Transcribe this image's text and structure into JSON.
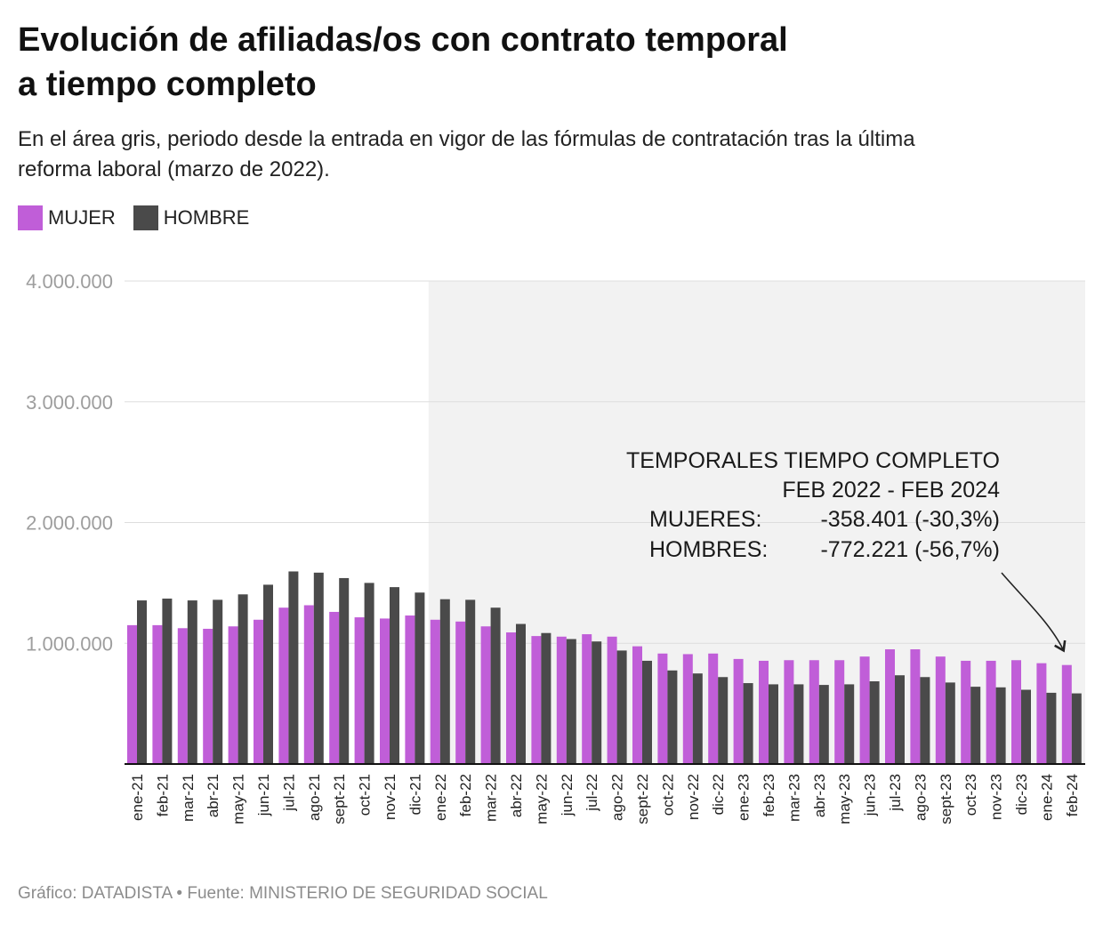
{
  "title_lines": [
    "Evolución de afiliadas/os con contrato temporal",
    "a tiempo completo"
  ],
  "subtitle_lines": [
    "En el área gris, periodo desde la entrada en vigor de las fórmulas de contratación tras la última",
    "reforma laboral (marzo de 2022)."
  ],
  "legend": [
    {
      "label": "MUJER",
      "color": "#c05ed8"
    },
    {
      "label": "HOMBRE",
      "color": "#4a4a4a"
    }
  ],
  "annotation": {
    "heading": "TEMPORALES TIEMPO COMPLETO",
    "period": "FEB 2022 - FEB 2024",
    "rows": [
      {
        "label": "MUJERES:",
        "value": "-358.401 (-30,3%)"
      },
      {
        "label": "HOMBRES:",
        "value": "-772.221 (-56,7%)"
      }
    ]
  },
  "footer": "Gráfico: DATADISTA • Fuente: MINISTERIO DE SEGURIDAD SOCIAL",
  "colors": {
    "mujer": "#c05ed8",
    "hombre": "#4a4a4a",
    "shade": "#f2f2f2",
    "grid": "#dddddd",
    "axis_label": "#9e9e9e"
  },
  "chart_data": {
    "type": "bar",
    "title": "Evolución de afiliadas/os con contrato temporal a tiempo completo",
    "xlabel": "",
    "ylabel": "",
    "ylim": [
      0,
      4000000
    ],
    "yticks": [
      1000000,
      2000000,
      3000000,
      4000000
    ],
    "ytick_labels": [
      "1.000.000",
      "2.000.000",
      "3.000.000",
      "4.000.000"
    ],
    "shaded_from": "ene-22",
    "categories": [
      "ene-21",
      "feb-21",
      "mar-21",
      "abr-21",
      "may-21",
      "jun-21",
      "jul-21",
      "ago-21",
      "sept-21",
      "oct-21",
      "nov-21",
      "dic-21",
      "ene-22",
      "feb-22",
      "mar-22",
      "abr-22",
      "may-22",
      "jun-22",
      "jul-22",
      "ago-22",
      "sept-22",
      "oct-22",
      "nov-22",
      "dic-22",
      "ene-23",
      "feb-23",
      "mar-23",
      "abr-23",
      "may-23",
      "jun-23",
      "jul-23",
      "ago-23",
      "sept-23",
      "oct-23",
      "nov-23",
      "dic-23",
      "ene-24",
      "feb-24"
    ],
    "series": [
      {
        "name": "MUJER",
        "values": [
          1150000,
          1150000,
          1125000,
          1120000,
          1140000,
          1195000,
          1295000,
          1315000,
          1260000,
          1215000,
          1205000,
          1230000,
          1195000,
          1180000,
          1140000,
          1090000,
          1060000,
          1055000,
          1075000,
          1055000,
          975000,
          915000,
          910000,
          915000,
          870000,
          855000,
          860000,
          860000,
          860000,
          890000,
          950000,
          950000,
          890000,
          855000,
          855000,
          860000,
          835000,
          820000
        ]
      },
      {
        "name": "HOMBRE",
        "values": [
          1355000,
          1370000,
          1355000,
          1360000,
          1405000,
          1485000,
          1595000,
          1585000,
          1540000,
          1500000,
          1465000,
          1420000,
          1365000,
          1360000,
          1295000,
          1160000,
          1085000,
          1035000,
          1015000,
          940000,
          855000,
          775000,
          750000,
          720000,
          670000,
          660000,
          660000,
          655000,
          660000,
          685000,
          735000,
          720000,
          675000,
          640000,
          635000,
          615000,
          590000,
          585000
        ]
      }
    ]
  }
}
